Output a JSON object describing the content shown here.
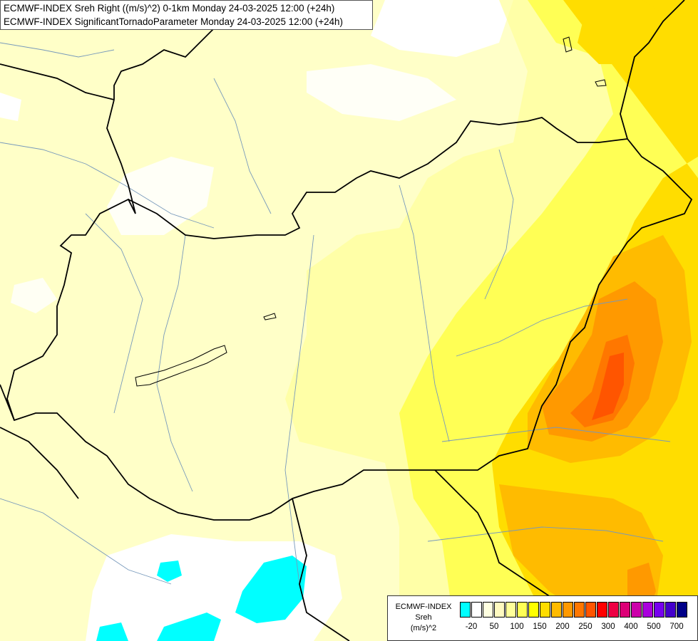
{
  "title": {
    "line1": "ECMWF-INDEX Sreh Right ((m/s)^2) 0-1km Monday 24-03-2025 12:00 (+24h)",
    "line2": "ECMWF-INDEX SignificantTornadoParameter Monday 24-03-2025 12:00 (+24h)"
  },
  "legend": {
    "model": "ECMWF-INDEX",
    "parameter": "Sreh",
    "unit": "(m/s)^2",
    "colors": [
      "#00ffff",
      "#ffffff",
      "#ffffe0",
      "#fffac0",
      "#ffff99",
      "#ffff55",
      "#ffff00",
      "#ffdd00",
      "#ffbb00",
      "#ff9900",
      "#ff7700",
      "#ff5500",
      "#ff0000",
      "#ee0044",
      "#dd0077",
      "#cc00aa",
      "#aa00dd",
      "#7700ee",
      "#4400cc",
      "#000088"
    ],
    "tick_labels": [
      {
        "label": "-20",
        "after_swatch": 1
      },
      {
        "label": "50",
        "after_swatch": 3
      },
      {
        "label": "100",
        "after_swatch": 5
      },
      {
        "label": "150",
        "after_swatch": 7
      },
      {
        "label": "200",
        "after_swatch": 9
      },
      {
        "label": "250",
        "after_swatch": 11
      },
      {
        "label": "300",
        "after_swatch": 13
      },
      {
        "label": "400",
        "after_swatch": 15
      },
      {
        "label": "500",
        "after_swatch": 17
      },
      {
        "label": "700",
        "after_swatch": 19
      }
    ]
  },
  "map": {
    "background_color": "#ffffc8",
    "border_color": "#000000",
    "river_color": "#7799bb",
    "highest_value_color": "#ff5500"
  }
}
